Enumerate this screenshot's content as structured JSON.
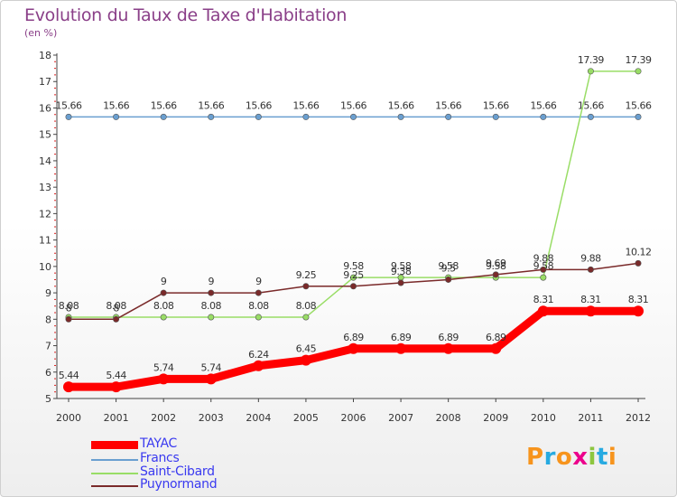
{
  "title": "Evolution du Taux de Taxe d'Habitation",
  "subtitle": "(en %)",
  "logo": {
    "text": "Proxiti",
    "letters": [
      "P",
      "r",
      "o",
      "x",
      "i",
      "t",
      "i"
    ],
    "colors": [
      "#f7941d",
      "#27aae1",
      "#f7941d",
      "#ec008c",
      "#8dc63f",
      "#27aae1",
      "#f7941d"
    ]
  },
  "chart_data": {
    "type": "line",
    "title": "Evolution du Taux de Taxe d'Habitation",
    "ylabel": "(en %)",
    "xlabel": "",
    "x": [
      "2000",
      "2001",
      "2002",
      "2003",
      "2004",
      "2005",
      "2006",
      "2007",
      "2008",
      "2009",
      "2010",
      "2011",
      "2012"
    ],
    "yticks": [
      "5",
      "6",
      "7",
      "8",
      "9",
      "10",
      "11",
      "12",
      "13",
      "14",
      "15",
      "16",
      "17",
      "18"
    ],
    "ylim": [
      5,
      18
    ],
    "grid": false,
    "legend": "bottom-left",
    "series": [
      {
        "name": "TAYAC",
        "color": "#ff0000",
        "width": 9,
        "labels": true,
        "values": [
          5.44,
          5.44,
          5.74,
          5.74,
          6.24,
          6.45,
          6.89,
          6.89,
          6.89,
          6.89,
          8.31,
          8.31,
          8.31
        ],
        "value_labels": [
          "5.44",
          "5.44",
          "5.74",
          "5.74",
          "6.24",
          "6.45",
          "6.89",
          "6.89",
          "6.89",
          "6.89",
          "8.31",
          "8.31",
          "8.31"
        ]
      },
      {
        "name": "Francs",
        "color": "#6a9fd0",
        "width": 1.5,
        "labels": true,
        "values": [
          15.66,
          15.66,
          15.66,
          15.66,
          15.66,
          15.66,
          15.66,
          15.66,
          15.66,
          15.66,
          15.66,
          15.66,
          15.66
        ],
        "value_labels": [
          "15.66",
          "15.66",
          "15.66",
          "15.66",
          "15.66",
          "15.66",
          "15.66",
          "15.66",
          "15.66",
          "15.66",
          "15.66",
          "15.66",
          "15.66"
        ]
      },
      {
        "name": "Saint-Cibard",
        "color": "#99dd66",
        "width": 1.5,
        "labels": true,
        "values": [
          8.08,
          8.08,
          8.08,
          8.08,
          8.08,
          8.08,
          9.58,
          9.58,
          9.58,
          9.58,
          9.58,
          17.39,
          17.39
        ],
        "value_labels": [
          "8.08",
          "8.08",
          "8.08",
          "8.08",
          "8.08",
          "8.08",
          "9.58",
          "9.58",
          "9.58",
          "9.58",
          "9.58",
          "17.39",
          "17.39"
        ]
      },
      {
        "name": "Puynormand",
        "color": "#7a2a2a",
        "width": 1.5,
        "labels": true,
        "values": [
          8,
          8,
          9,
          9,
          9,
          9.25,
          9.25,
          9.38,
          9.5,
          9.69,
          9.88,
          9.88,
          10.12
        ],
        "value_labels": [
          "8",
          "8",
          "9",
          "9",
          "9",
          "9.25",
          "9.25",
          "9.38",
          "9.5",
          "9.69",
          "9.88",
          "9.88",
          "10.12"
        ]
      }
    ]
  }
}
